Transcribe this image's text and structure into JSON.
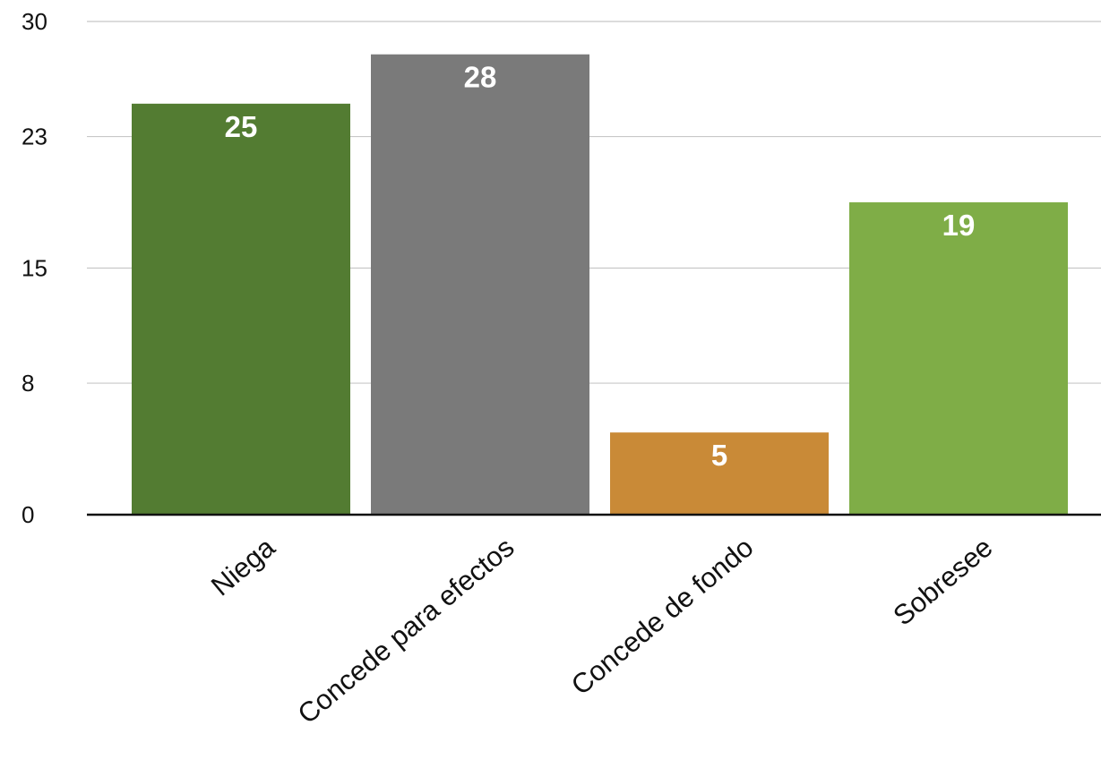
{
  "chart_data": {
    "type": "bar",
    "title": "",
    "xlabel": "",
    "ylabel": "",
    "categories": [
      "Niega",
      "Concede para efectos",
      "Concede de fondo",
      "Sobresee"
    ],
    "values": [
      25,
      28,
      5,
      19
    ],
    "data_labels": [
      "25",
      "28",
      "5",
      "19"
    ],
    "bar_colors": [
      "#537c32",
      "#7a7a7a",
      "#c98a37",
      "#7fad47"
    ],
    "ylim": [
      0,
      30
    ],
    "yticks": [
      0,
      8,
      15,
      23,
      30
    ],
    "ytick_labels": [
      "0",
      "8",
      "15",
      "23",
      "30"
    ],
    "grid": true,
    "gridline_color": "#c8c8c8",
    "axis_color": "#111111",
    "legend": "none"
  }
}
